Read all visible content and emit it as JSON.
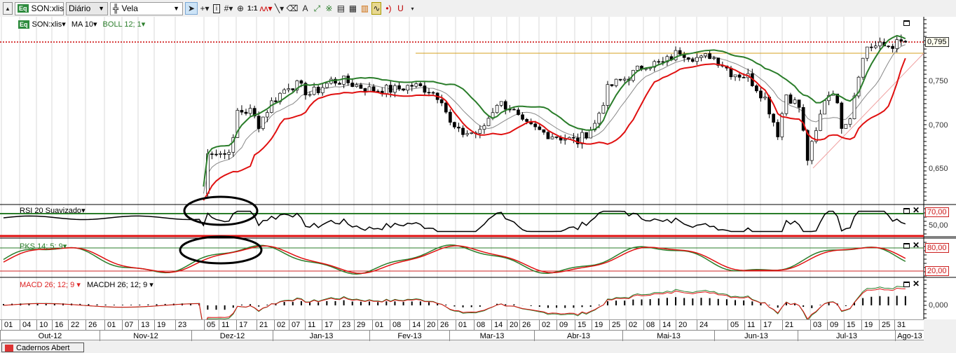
{
  "toolbar": {
    "symbol": "SON:xlis",
    "symbol_badge": "Eq",
    "period": "Diário",
    "chart_type": "Vela",
    "tools": [
      "pointer-icon",
      "crosshair-icon",
      "info-icon",
      "grid-icon",
      "zoom-icon",
      "one-to-one-icon",
      "indicator-icon",
      "line-tool-icon",
      "eraser-icon",
      "text-tool-icon",
      "fibonacci-icon",
      "pattern-icon",
      "paste-icon",
      "template-icon",
      "template2-icon",
      "indicator2-icon",
      "sound-icon",
      "magnet-icon"
    ],
    "one_to_one": "1:1"
  },
  "legend": {
    "symbol": "SON:xlis",
    "ma": "MA 10",
    "boll": "BOLL 12; 1"
  },
  "panes": {
    "rsi": "RSI 20 Suavizado",
    "pks": "PKS 14; 5; 9",
    "macd": "MACD 26; 12; 9",
    "macdh": "MACDH 26; 12; 9"
  },
  "axis": {
    "price_ticks": [
      "0,750",
      "0,700",
      "0,650"
    ],
    "price_last": "0,795",
    "rsi_high": "70,00",
    "rsi_mid": "50,00",
    "pks_high": "80,00",
    "pks_low": "20,00",
    "macd_zero": "0,000"
  },
  "dates": {
    "days": [
      "01",
      "04",
      "10",
      "16",
      "22",
      "26",
      "01",
      "07",
      "13",
      "19",
      "23",
      "05",
      "11",
      "17",
      "21",
      "02",
      "07",
      "11",
      "17",
      "23",
      "29",
      "01",
      "08",
      "14",
      "20",
      "26",
      "01",
      "08",
      "14",
      "20",
      "26",
      "02",
      "09",
      "15",
      "19",
      "25",
      "02",
      "08",
      "14",
      "20",
      "24",
      "05",
      "11",
      "17",
      "21",
      "03",
      "09",
      "15",
      "19",
      "25",
      "31"
    ],
    "months": [
      "Out-12",
      "Nov-12",
      "Dez-12",
      "Jan-13",
      "Fev-13",
      "Mar-13",
      "Abr-13",
      "Mai-13",
      "Jun-13",
      "Jul-13",
      "Ago-13"
    ]
  },
  "bottom_tab": "Cadernos Abert",
  "colors": {
    "green": "#2a7d2a",
    "red": "#e01010",
    "orange": "#d4a020"
  },
  "chart_data": {
    "type": "candlestick",
    "x_unit": "trading day index from 01-Out-12",
    "ylim": [
      0.61,
      0.81
    ],
    "close": [
      [
        47,
        0.62
      ],
      [
        48,
        0.665
      ],
      [
        49,
        0.67
      ],
      [
        52,
        0.665
      ],
      [
        54,
        0.68
      ],
      [
        55,
        0.715
      ],
      [
        58,
        0.715
      ],
      [
        60,
        0.7
      ],
      [
        63,
        0.725
      ],
      [
        65,
        0.735
      ],
      [
        67,
        0.745
      ],
      [
        69,
        0.745
      ],
      [
        72,
        0.735
      ],
      [
        74,
        0.74
      ],
      [
        77,
        0.75
      ],
      [
        80,
        0.75
      ],
      [
        83,
        0.745
      ],
      [
        86,
        0.74
      ],
      [
        88,
        0.74
      ],
      [
        92,
        0.74
      ],
      [
        96,
        0.745
      ],
      [
        100,
        0.74
      ],
      [
        103,
        0.73
      ],
      [
        105,
        0.7
      ],
      [
        107,
        0.69
      ],
      [
        112,
        0.69
      ],
      [
        116,
        0.725
      ],
      [
        119,
        0.72
      ],
      [
        122,
        0.7
      ],
      [
        127,
        0.69
      ],
      [
        131,
        0.685
      ],
      [
        135,
        0.68
      ],
      [
        139,
        0.7
      ],
      [
        142,
        0.74
      ],
      [
        143,
        0.745
      ],
      [
        147,
        0.755
      ],
      [
        151,
        0.77
      ],
      [
        155,
        0.77
      ],
      [
        159,
        0.785
      ],
      [
        161,
        0.78
      ],
      [
        164,
        0.775
      ],
      [
        166,
        0.78
      ],
      [
        169,
        0.77
      ],
      [
        171,
        0.76
      ],
      [
        175,
        0.755
      ],
      [
        179,
        0.73
      ],
      [
        182,
        0.69
      ],
      [
        184,
        0.735
      ],
      [
        187,
        0.72
      ],
      [
        189,
        0.66
      ],
      [
        191,
        0.69
      ],
      [
        193,
        0.73
      ],
      [
        195,
        0.74
      ],
      [
        197,
        0.7
      ],
      [
        199,
        0.71
      ],
      [
        201,
        0.76
      ],
      [
        203,
        0.79
      ],
      [
        207,
        0.79
      ],
      [
        212,
        0.795
      ]
    ],
    "last_price": 0.795,
    "resistance": 0.782
  }
}
